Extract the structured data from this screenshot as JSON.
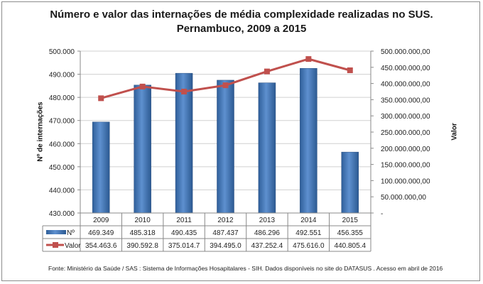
{
  "chart_data": {
    "type": "bar+line",
    "title": "Número e valor das internações de média complexidade realizadas no SUS.",
    "subtitle": "Pernambuco, 2009 a 2015",
    "categories": [
      "2009",
      "2010",
      "2011",
      "2012",
      "2013",
      "2014",
      "2015"
    ],
    "ylabel_left": "Nº de internações",
    "ylabel_right": "Valor",
    "ylim_left": [
      430000,
      500000
    ],
    "ylim_right": [
      0,
      500000000
    ],
    "left_ticks": [
      "430.000",
      "440.000",
      "450.000",
      "460.000",
      "470.000",
      "480.000",
      "490.000",
      "500.000"
    ],
    "right_ticks": [
      "-",
      "50.000.000,00",
      "100.000.000,00",
      "150.000.000,00",
      "200.000.000,00",
      "250.000.000,00",
      "300.000.000,00",
      "350.000.000,00",
      "400.000.000,00",
      "450.000.000,00",
      "500.000.000,00"
    ],
    "grid": "horizontal",
    "legend": "data-table",
    "series": [
      {
        "name": "Nº",
        "type": "bar",
        "color": "#4f81bd",
        "values": [
          469349,
          485318,
          490435,
          487437,
          486296,
          492551,
          456355
        ],
        "labels": [
          "469.349",
          "485.318",
          "490.435",
          "487.437",
          "486.296",
          "492.551",
          "456.355"
        ]
      },
      {
        "name": "Valor",
        "type": "line",
        "color": "#c0504d",
        "values": [
          354463600,
          390592800,
          375014700,
          394495000,
          437252400,
          475616000,
          440805400
        ],
        "labels": [
          "354.463.6",
          "390.592.8",
          "375.014.7",
          "394.495.0",
          "437.252.4",
          "475.616.0",
          "440.805.4"
        ]
      }
    ]
  },
  "source": "Fonte:  Ministério da Saúde  / SAS : Sistema de Informações Hosapitalares - SIH. Dados disponíveis no site do DATASUS . Acesso em abril de 2016"
}
